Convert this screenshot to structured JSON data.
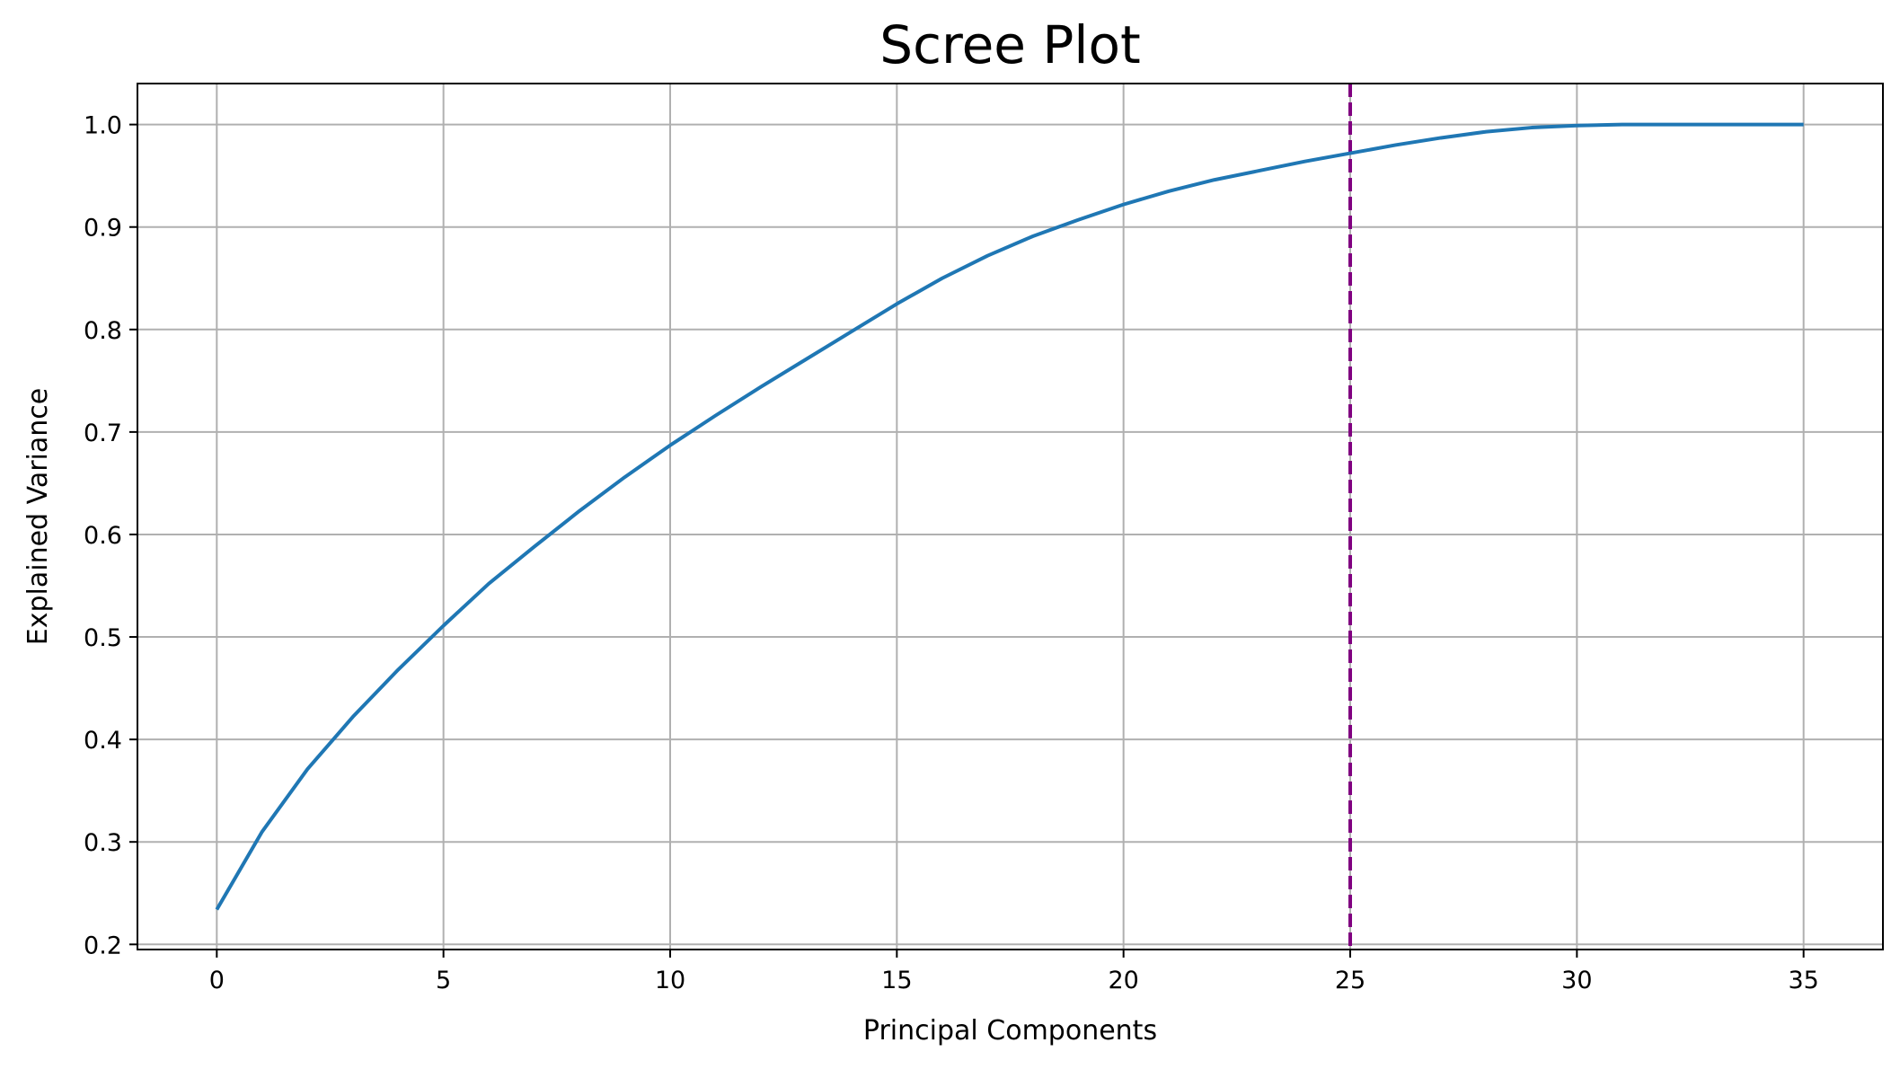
{
  "chart_data": {
    "type": "line",
    "title": "Scree Plot",
    "xlabel": "Principal Components",
    "ylabel": "Explained Variance",
    "xlim": [
      -1.75,
      36.75
    ],
    "ylim": [
      0.195,
      1.04
    ],
    "xticks": [
      0,
      5,
      10,
      15,
      20,
      25,
      30,
      35
    ],
    "yticks": [
      0.2,
      0.3,
      0.4,
      0.5,
      0.6,
      0.7,
      0.8,
      0.9,
      1.0
    ],
    "ytick_labels": [
      "0.2",
      "0.3",
      "0.4",
      "0.5",
      "0.6",
      "0.7",
      "0.8",
      "0.9",
      "1.0"
    ],
    "grid": true,
    "series": [
      {
        "color": "#1f77b4",
        "x": [
          0,
          1,
          2,
          3,
          4,
          5,
          6,
          7,
          8,
          9,
          10,
          11,
          12,
          13,
          14,
          15,
          16,
          17,
          18,
          19,
          20,
          21,
          22,
          23,
          24,
          25,
          26,
          27,
          28,
          29,
          30,
          31,
          32,
          33,
          34,
          35
        ],
        "values": [
          0.234,
          0.31,
          0.371,
          0.422,
          0.468,
          0.511,
          0.552,
          0.588,
          0.623,
          0.656,
          0.687,
          0.716,
          0.744,
          0.771,
          0.798,
          0.825,
          0.85,
          0.872,
          0.891,
          0.907,
          0.922,
          0.935,
          0.946,
          0.955,
          0.964,
          0.972,
          0.98,
          0.987,
          0.993,
          0.997,
          0.999,
          1.0,
          1.0,
          1.0,
          1.0,
          1.0
        ]
      }
    ],
    "vline": {
      "x": 25,
      "color": "#800080",
      "style": "dashed"
    }
  }
}
